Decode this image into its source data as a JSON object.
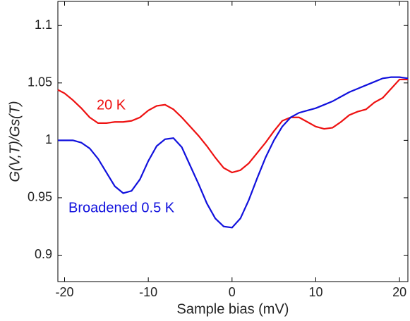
{
  "chart_data": {
    "type": "line",
    "x_label": "Sample bias (mV)",
    "y_label": "G(V,T)/Gs(T)",
    "x": [
      -20.8,
      -20,
      -19,
      -18,
      -17,
      -16,
      -15,
      -14,
      -13,
      -12,
      -11,
      -10,
      -9,
      -8,
      -7,
      -6,
      -5,
      -4,
      -3,
      -2,
      -1,
      0,
      1,
      2,
      3,
      4,
      5,
      6,
      7,
      8,
      9,
      10,
      11,
      12,
      13,
      14,
      15,
      16,
      17,
      18,
      19,
      20,
      21
    ],
    "series": [
      {
        "name": "20 K",
        "color": "#ee1111",
        "values": [
          1.044,
          1.041,
          1.035,
          1.028,
          1.02,
          1.015,
          1.015,
          1.016,
          1.016,
          1.017,
          1.02,
          1.026,
          1.03,
          1.031,
          1.027,
          1.02,
          1.012,
          1.004,
          0.995,
          0.985,
          0.976,
          0.972,
          0.974,
          0.98,
          0.989,
          0.998,
          1.008,
          1.017,
          1.02,
          1.02,
          1.016,
          1.012,
          1.01,
          1.011,
          1.016,
          1.022,
          1.025,
          1.027,
          1.033,
          1.037,
          1.045,
          1.053,
          1.053
        ]
      },
      {
        "name": "Broadened 0.5 K",
        "color": "#1111dd",
        "values": [
          1.0,
          1.0,
          1.0,
          0.998,
          0.993,
          0.984,
          0.972,
          0.96,
          0.954,
          0.956,
          0.966,
          0.982,
          0.995,
          1.001,
          1.002,
          0.994,
          0.978,
          0.962,
          0.945,
          0.932,
          0.925,
          0.924,
          0.932,
          0.948,
          0.967,
          0.985,
          1.0,
          1.012,
          1.02,
          1.024,
          1.026,
          1.028,
          1.031,
          1.034,
          1.038,
          1.042,
          1.045,
          1.048,
          1.051,
          1.054,
          1.055,
          1.055,
          1.054
        ]
      }
    ],
    "xlim": [
      -20.8,
      21
    ],
    "ylim": [
      0.877,
      1.121
    ],
    "xticks": [
      -20,
      -10,
      0,
      10,
      20
    ],
    "yticks": [
      0.9,
      0.95,
      1,
      1.05,
      1.1
    ]
  }
}
